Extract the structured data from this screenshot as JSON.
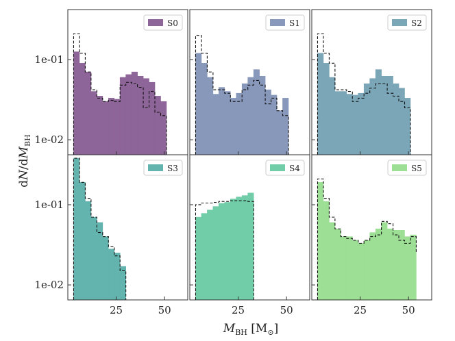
{
  "chart_data": {
    "type": "histogram-grid",
    "xlabel": "M_BH [M_⊙]",
    "ylabel": "dN/dM_BH",
    "yscale": "log",
    "ylim": [
      0.0065,
      0.42
    ],
    "yticks": [
      0.01,
      0.1
    ],
    "ytick_labels": [
      "1e-02",
      "1e-01"
    ],
    "bins": [
      3,
      6,
      9,
      12,
      15,
      18,
      21,
      24,
      27,
      30,
      33,
      36,
      39,
      42,
      45,
      48,
      51,
      54
    ],
    "xlim": [
      0,
      62
    ],
    "xticks": [
      25,
      50
    ],
    "xtick_labels": [
      "25",
      "50"
    ],
    "reference_label": "dashed outline (reference distribution)",
    "panels": [
      {
        "label": "S0",
        "color": "#8e6599",
        "values": [
          0.125,
          0.09,
          0.07,
          0.04,
          0.035,
          0.03,
          0.033,
          0.032,
          0.06,
          0.065,
          0.07,
          0.062,
          0.058,
          0.052,
          0.035,
          0.03
        ],
        "reference": [
          0.21,
          0.12,
          0.07,
          0.042,
          0.033,
          0.03,
          0.031,
          0.03,
          0.048,
          0.052,
          0.05,
          0.045,
          0.025,
          0.04,
          0.022,
          0.02
        ]
      },
      {
        "label": "S1",
        "color": "#8898bb",
        "values": [
          0.12,
          0.09,
          0.06,
          0.037,
          0.045,
          0.04,
          0.033,
          0.038,
          0.05,
          0.06,
          0.075,
          0.062,
          0.042,
          0.036,
          0.023,
          0.033
        ],
        "reference": [
          0.2,
          0.12,
          0.07,
          0.042,
          0.042,
          0.038,
          0.03,
          0.03,
          0.042,
          0.048,
          0.055,
          0.048,
          0.028,
          0.033,
          0.023,
          0.02
        ]
      },
      {
        "label": "S2",
        "color": "#7aa6b8",
        "values": [
          0.12,
          0.09,
          0.06,
          0.04,
          0.04,
          0.037,
          0.036,
          0.038,
          0.05,
          0.058,
          0.075,
          0.062,
          0.062,
          0.05,
          0.044,
          0.033
        ],
        "reference": [
          0.21,
          0.12,
          0.09,
          0.042,
          0.042,
          0.04,
          0.03,
          0.033,
          0.038,
          0.044,
          0.05,
          0.05,
          0.038,
          0.035,
          0.03,
          0.025
        ]
      },
      {
        "label": "S3",
        "color": "#63b3ae",
        "values": [
          0.38,
          0.19,
          0.11,
          0.07,
          0.06,
          0.04,
          0.028,
          0.025,
          0.017
        ],
        "reference": [
          0.38,
          0.19,
          0.12,
          0.07,
          0.045,
          0.04,
          0.03,
          0.023,
          0.015
        ]
      },
      {
        "label": "S4",
        "color": "#70cda8",
        "values": [
          0.07,
          0.078,
          0.086,
          0.095,
          0.104,
          0.107,
          0.118,
          0.125,
          0.13,
          0.14
        ],
        "reference": [
          0.1,
          0.105,
          0.105,
          0.107,
          0.11,
          0.11,
          0.112,
          0.112,
          0.112,
          0.11
        ]
      },
      {
        "label": "S5",
        "color": "#9cdf95",
        "values": [
          0.19,
          0.11,
          0.06,
          0.05,
          0.04,
          0.04,
          0.036,
          0.033,
          0.036,
          0.045,
          0.05,
          0.06,
          0.05,
          0.048,
          0.048,
          0.04,
          0.042,
          0.03
        ],
        "reference": [
          0.21,
          0.12,
          0.07,
          0.05,
          0.04,
          0.038,
          0.036,
          0.033,
          0.036,
          0.04,
          0.042,
          0.062,
          0.058,
          0.042,
          0.036,
          0.033,
          0.04,
          0.025
        ]
      }
    ]
  }
}
